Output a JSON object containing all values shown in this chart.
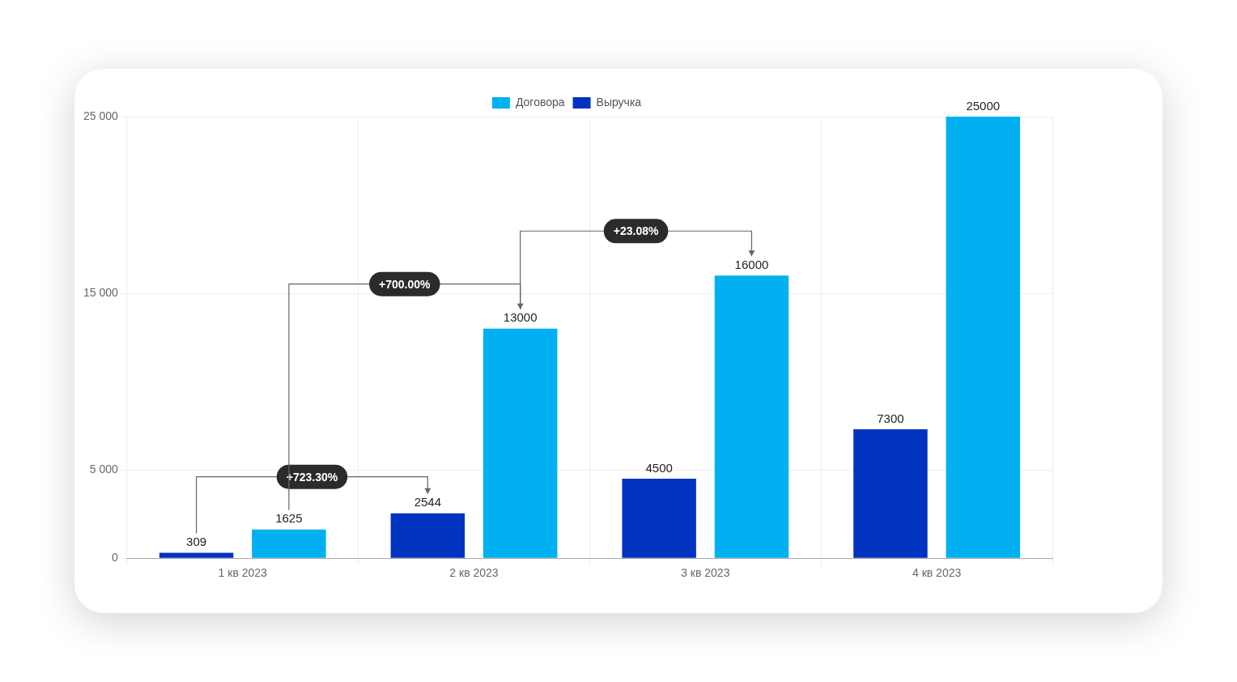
{
  "chart_data": {
    "type": "bar",
    "categories": [
      "1 кв 2023",
      "2 кв 2023",
      "3 кв 2023",
      "4 кв 2023"
    ],
    "series": [
      {
        "name": "Выручка",
        "color": "#0033c0",
        "values": [
          309,
          2544,
          4500,
          7300
        ]
      },
      {
        "name": "Договора",
        "color": "#00b0f0",
        "values": [
          1625,
          13000,
          16000,
          25000
        ]
      }
    ],
    "ylim": [
      0,
      25000
    ],
    "yticks": [
      {
        "value": 0,
        "label": "0"
      },
      {
        "value": 5000,
        "label": "5 000"
      },
      {
        "value": 15000,
        "label": "15 000"
      },
      {
        "value": 25000,
        "label": "25 000"
      }
    ],
    "grid": true,
    "legend": "top",
    "data_labels": true,
    "annotations": [
      "+723.30%",
      "+700.00%",
      "+23.08%"
    ]
  }
}
